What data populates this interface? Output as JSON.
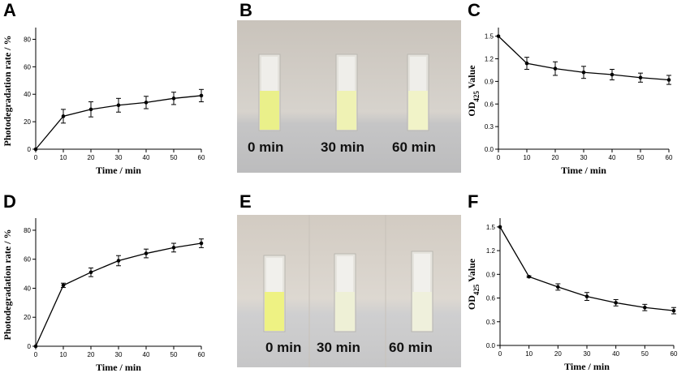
{
  "panels": [
    {
      "letter": "A"
    },
    {
      "letter": "B"
    },
    {
      "letter": "C"
    },
    {
      "letter": "D"
    },
    {
      "letter": "E"
    },
    {
      "letter": "F"
    }
  ],
  "photos": [
    {
      "panel": "B",
      "labels": [
        "0 min",
        "30 min",
        "60 min"
      ],
      "liquid_colors": [
        "#eaf08a",
        "#eff2b4",
        "#f1f3c8"
      ]
    },
    {
      "panel": "E",
      "labels": [
        "0 min",
        "30 min",
        "60 min"
      ],
      "liquid_colors": [
        "#eef283",
        "#eef0d6",
        "#eff0dc"
      ]
    }
  ],
  "chart_data": [
    {
      "panel": "A",
      "type": "line",
      "xlabel": "Time / min",
      "ylabel": "Photodegradation rate / %",
      "x": [
        0,
        10,
        20,
        30,
        40,
        50,
        60
      ],
      "y": [
        0,
        24,
        29,
        32,
        34,
        37,
        39
      ],
      "err": [
        0,
        5,
        5.5,
        5,
        4.5,
        4.5,
        4.5
      ],
      "xlim": [
        0,
        60
      ],
      "ylim": [
        0,
        85
      ],
      "xticks": [
        0,
        10,
        20,
        30,
        40,
        50,
        60
      ],
      "yticks": [
        0,
        20,
        40,
        60,
        80
      ],
      "ytick_labels": [
        "0",
        "20",
        "40",
        "60",
        "80"
      ]
    },
    {
      "panel": "C",
      "type": "line",
      "xlabel": "Time / min",
      "ylabel": "Value",
      "ylabel_prefix": "OD",
      "ylabel_sub": "425",
      "x": [
        0,
        10,
        20,
        30,
        40,
        50,
        60
      ],
      "y": [
        1.5,
        1.14,
        1.07,
        1.02,
        0.99,
        0.95,
        0.92
      ],
      "err": [
        0,
        0.08,
        0.09,
        0.08,
        0.07,
        0.06,
        0.06
      ],
      "xlim": [
        0,
        60
      ],
      "ylim": [
        0,
        1.55
      ],
      "xticks": [
        0,
        10,
        20,
        30,
        40,
        50,
        60
      ],
      "yticks": [
        0,
        0.3,
        0.6,
        0.9,
        1.2,
        1.5
      ],
      "ytick_labels": [
        "0.0",
        "0.3",
        "0.6",
        "0.9",
        "1.2",
        "1.5"
      ]
    },
    {
      "panel": "D",
      "type": "line",
      "xlabel": "Time / min",
      "ylabel": "Photodegradation rate / %",
      "x": [
        0,
        10,
        20,
        30,
        40,
        50,
        60
      ],
      "y": [
        0,
        42,
        51,
        59,
        64,
        68,
        71
      ],
      "err": [
        0,
        1.5,
        3,
        3.5,
        3,
        3,
        3
      ],
      "xlim": [
        0,
        60
      ],
      "ylim": [
        0,
        85
      ],
      "xticks": [
        0,
        10,
        20,
        30,
        40,
        50,
        60
      ],
      "yticks": [
        0,
        20,
        40,
        60,
        80
      ],
      "ytick_labels": [
        "0",
        "20",
        "40",
        "60",
        "80"
      ]
    },
    {
      "panel": "F",
      "type": "line",
      "xlabel": "Time / min",
      "ylabel": "Value",
      "ylabel_prefix": "OD",
      "ylabel_sub": "425",
      "x": [
        0,
        10,
        20,
        30,
        40,
        50,
        60
      ],
      "y": [
        1.5,
        0.87,
        0.74,
        0.62,
        0.54,
        0.48,
        0.44
      ],
      "err": [
        0,
        0.01,
        0.04,
        0.05,
        0.04,
        0.04,
        0.04
      ],
      "xlim": [
        0,
        60
      ],
      "ylim": [
        0,
        1.55
      ],
      "xticks": [
        0,
        10,
        20,
        30,
        40,
        50,
        60
      ],
      "yticks": [
        0,
        0.3,
        0.6,
        0.9,
        1.2,
        1.5
      ],
      "ytick_labels": [
        "0.0",
        "0.3",
        "0.6",
        "0.9",
        "1.2",
        "1.5"
      ]
    }
  ]
}
